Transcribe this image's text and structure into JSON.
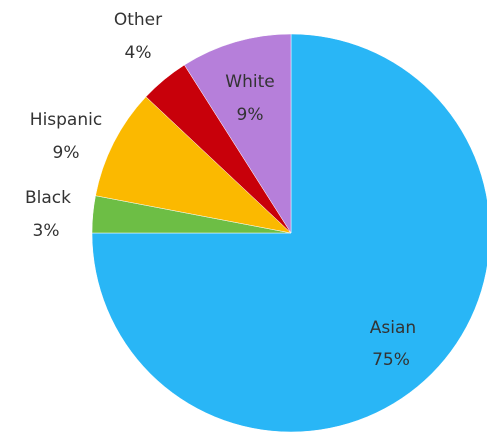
{
  "chart_data": {
    "type": "pie",
    "title": "",
    "legend": "none",
    "slices": [
      {
        "label": "Asian",
        "percent_label": "75%",
        "value": 75,
        "color": "#29B6F6"
      },
      {
        "label": "Black",
        "percent_label": "3%",
        "value": 3,
        "color": "#6DBE45"
      },
      {
        "label": "Hispanic",
        "percent_label": "9%",
        "value": 9,
        "color": "#FBB900"
      },
      {
        "label": "Other",
        "percent_label": "4%",
        "value": 4,
        "color": "#C8000A"
      },
      {
        "label": "White",
        "percent_label": "9%",
        "value": 9,
        "color": "#B67FDA"
      }
    ]
  }
}
